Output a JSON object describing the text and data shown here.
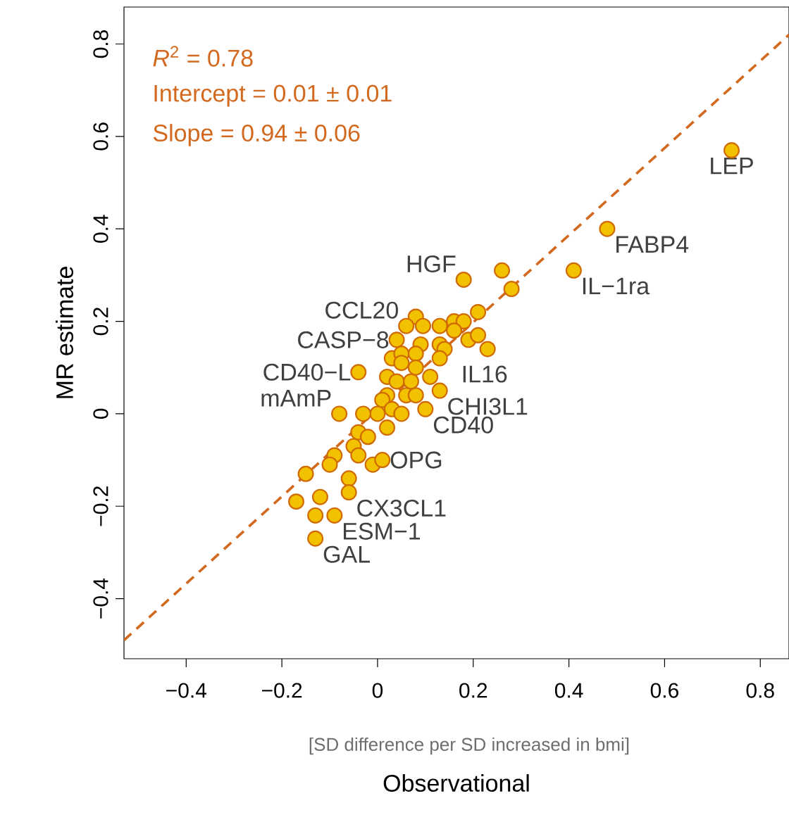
{
  "chart_data": {
    "type": "scatter",
    "xlabel": "Observational",
    "ylabel": "MR estimate",
    "xlim": [
      -0.53,
      0.86
    ],
    "ylim": [
      -0.53,
      0.88
    ],
    "xticks": [
      {
        "value": -0.4,
        "label": "−0.4"
      },
      {
        "value": -0.2,
        "label": "−0.2"
      },
      0,
      0.2,
      0.4,
      0.6,
      0.8
    ],
    "yticks": [
      {
        "value": -0.4,
        "label": "−0.4"
      },
      {
        "value": -0.2,
        "label": "−0.2"
      },
      0,
      0.2,
      0.4,
      0.6,
      0.8
    ],
    "annotations": [
      "*R*$^{2}$ = 0.78",
      "Intercept = 0.01 ± 0.01",
      "Slope = 0.94 ± 0.06",
      "[SD difference per SD increased in bmi]",
      {
        "text": "HGF",
        "x": 0.18,
        "y": 0.29
      },
      {
        "text": "CCL20",
        "x": 0.06,
        "y": 0.19
      },
      {
        "text": "CASP−8",
        "x": 0.04,
        "y": 0.16
      },
      {
        "text": "CD40−L",
        "x": -0.04,
        "y": 0.09
      },
      {
        "text": "mAmP",
        "x": -0.08,
        "y": 0.0
      },
      {
        "text": "IL16",
        "x": 0.13,
        "y": 0.12
      },
      {
        "text": "CHI3L1",
        "x": 0.13,
        "y": 0.05
      },
      {
        "text": "CD40",
        "x": 0.1,
        "y": 0.01
      },
      {
        "text": "OPG",
        "x": 0.01,
        "y": -0.1
      },
      {
        "text": "CX3CL1",
        "x": -0.06,
        "y": -0.17
      },
      {
        "text": "ESM−1",
        "x": -0.09,
        "y": -0.22
      },
      {
        "text": "GAL",
        "x": -0.13,
        "y": -0.27
      },
      {
        "text": "IL−1ra",
        "x": 0.41,
        "y": 0.31
      },
      {
        "text": "FABP4",
        "x": 0.48,
        "y": 0.4
      },
      {
        "text": "LEP",
        "x": 0.74,
        "y": 0.57
      }
    ],
    "series": [
      {
        "type": "line",
        "color": "#d2691e",
        "line_style": "dashed",
        "marker": "none",
        "x": [
          -0.53,
          0.86
        ],
        "values": [
          -0.49,
          0.82
        ]
      },
      {
        "color": "#f2c200",
        "marker": "circle",
        "x": [
          0.18,
          0.26,
          0.28,
          0.21,
          0.08,
          0.095,
          0.06,
          0.13,
          0.16,
          0.18,
          0.16,
          0.19,
          0.21,
          0.23,
          0.04,
          0.09,
          0.13,
          0.14,
          0.13,
          0.03,
          0.05,
          0.08,
          0.05,
          0.08,
          0.11,
          -0.04,
          0.02,
          0.04,
          0.07,
          0.13,
          0.02,
          0.06,
          0.08,
          0.1,
          0.01,
          0.03,
          0.0,
          0.05,
          0.02,
          -0.08,
          -0.03,
          -0.04,
          -0.02,
          -0.05,
          -0.04,
          -0.09,
          -0.1,
          -0.01,
          0.01,
          -0.15,
          -0.06,
          -0.06,
          -0.12,
          -0.17,
          -0.13,
          -0.09,
          -0.13,
          0.41,
          0.48,
          0.74
        ],
        "values": [
          0.29,
          0.31,
          0.27,
          0.22,
          0.21,
          0.19,
          0.19,
          0.19,
          0.2,
          0.2,
          0.18,
          0.16,
          0.17,
          0.14,
          0.16,
          0.15,
          0.15,
          0.14,
          0.12,
          0.12,
          0.13,
          0.13,
          0.11,
          0.1,
          0.08,
          0.09,
          0.08,
          0.07,
          0.07,
          0.05,
          0.04,
          0.04,
          0.04,
          0.01,
          0.03,
          0.01,
          0.0,
          0.0,
          -0.03,
          0.0,
          0.0,
          -0.04,
          -0.05,
          -0.07,
          -0.09,
          -0.09,
          -0.11,
          -0.11,
          -0.1,
          -0.13,
          -0.14,
          -0.17,
          -0.18,
          -0.19,
          -0.22,
          -0.22,
          -0.27,
          0.31,
          0.4,
          0.57
        ]
      }
    ]
  }
}
